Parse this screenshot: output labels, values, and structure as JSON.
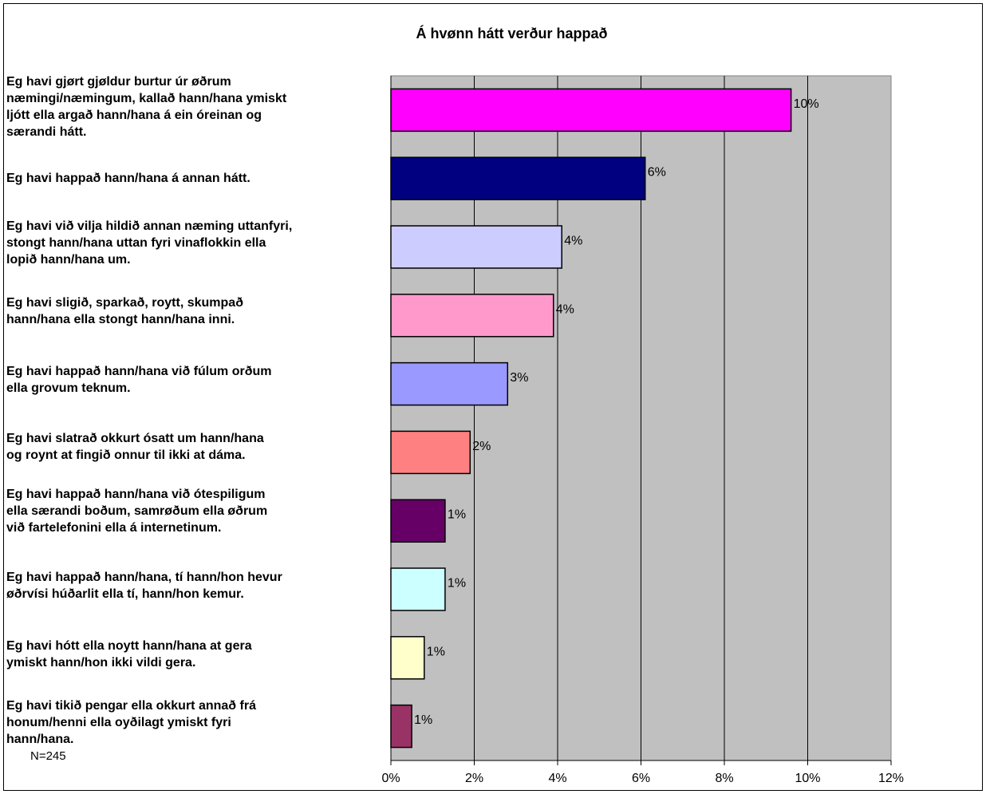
{
  "chart_data": {
    "type": "bar",
    "orientation": "horizontal",
    "title": "Á hvønn hátt verður happað",
    "categories": [
      "Eg havi gjørt gjøldur burtur úr øðrum nemingi/næmingum, kallað hann/hana ymiskt ljótt ella argað hann/hana á ein óreinan og sœrandi hátt.",
      "Eg havi happað hann/hana á annan hátt.",
      "Eg havi við vilja hildið annan næming uttanfyri, stongt hann/hana uttan fyri vinaflokkin ella lopið hann/hana um.",
      "Eg havi sligið, sparkað, roytt, skumpað hann/hana ella stongt hann/hana inni.",
      "Eg havi happað hann/hana við fúlum orðum ella grovum teknum.",
      "Eg havi slatrað okkurt ósatt um hann/hana og roynt at fingið onnur til ikki at dáma.",
      "Eg havi happað hann/hana við ótespiligum ella særandi boðum, samrøðum ella øðrum við fartelefonini ella á internetinum.",
      "Eg havi happað hann/hana, tí hann/hon hevur øðrvísi húðarlit ella tí, hann/hon kemur.",
      "Eg havi hótt ella noytt hann/hana at gera ymiskt hann/hon ikki vildi gera.",
      "Eg havi tikið pengar ella okkurt annað frá honum/henni ella oyðilagt ymiskt fyri hann/hana."
    ],
    "category_lines": [
      "Eg havi gjørt gjøldur burtur úr øðrum\nnæmingi/næmingum, kallað hann/hana ymiskt\nljótt ella argað hann/hana á ein óreinan og\nsærandi hátt.",
      "Eg havi happað hann/hana á annan hátt.",
      "Eg havi við vilja hildið annan næming uttanfyri,\nstongt hann/hana uttan fyri vinaflokkin ella\nlopið hann/hana um.",
      "Eg havi sligið, sparkað, roytt, skumpað\nhann/hana ella stongt hann/hana inni.",
      "Eg havi happað hann/hana við fúlum orðum\nella grovum teknum.",
      "Eg havi slatrað okkurt ósatt um hann/hana\nog roynt at fingið onnur til ikki at dáma.",
      "Eg havi happað hann/hana við ótespiligum\nella særandi boðum, samrøðum ella øðrum\nvið fartelefonini ella á internetinum.",
      "Eg havi happað hann/hana, tí hann/hon hevur\nøðrvísi húðarlit ella tí, hann/hon kemur.",
      "Eg havi hótt ella noytt hann/hana at gera\nymiskt hann/hon ikki vildi gera.",
      "Eg havi tikið pengar ella okkurt annað frá\nhonum/henni ella oyðilagt ymiskt fyri\nhann/hana."
    ],
    "values": [
      9.6,
      6.1,
      4.1,
      3.9,
      2.8,
      1.9,
      1.3,
      1.3,
      0.8,
      0.5
    ],
    "data_labels": [
      "10%",
      "6%",
      "4%",
      "4%",
      "3%",
      "2%",
      "1%",
      "1%",
      "1%",
      "1%"
    ],
    "colors": [
      "#ff00ff",
      "#000080",
      "#ccccff",
      "#ff99cc",
      "#9999ff",
      "#ff8080",
      "#660066",
      "#ccffff",
      "#ffffcc",
      "#993366"
    ],
    "xlim": [
      0,
      12
    ],
    "x_ticks": [
      "0%",
      "2%",
      "4%",
      "6%",
      "8%",
      "10%",
      "12%"
    ],
    "plot_background": "#c0c0c0",
    "grid": "vertical",
    "xlabel": "",
    "ylabel": ""
  },
  "note": "N=245"
}
